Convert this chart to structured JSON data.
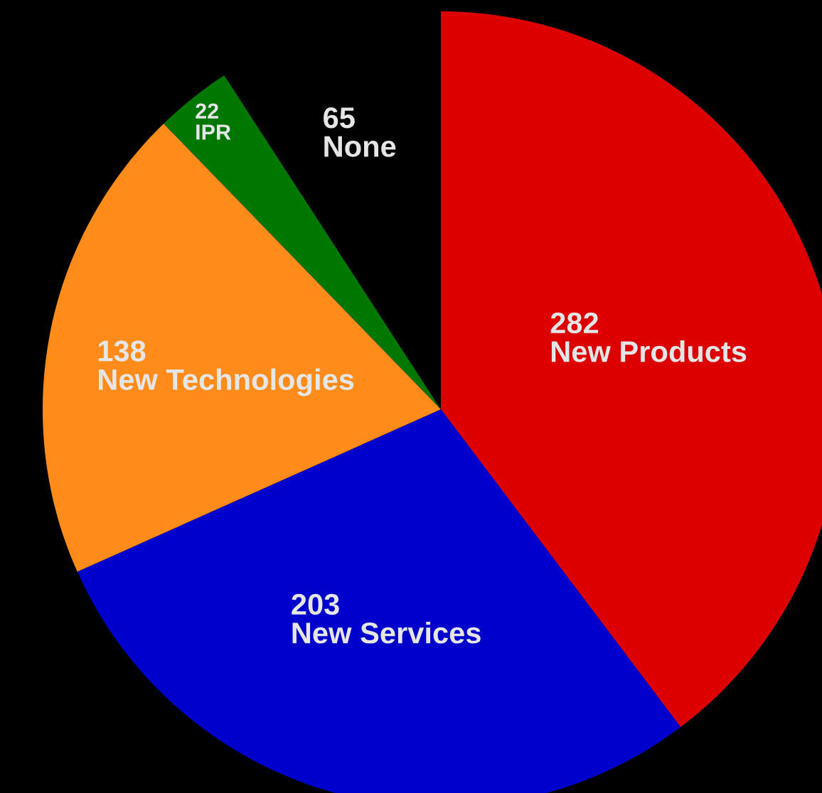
{
  "chart_data": {
    "type": "pie",
    "categories": [
      "New Products",
      "New Services",
      "New Technologies",
      "IPR",
      "None"
    ],
    "values": [
      282,
      203,
      138,
      22,
      65
    ],
    "colors": [
      "#dd0000",
      "#0000cc",
      "#ff8c1a",
      "#007700",
      "#000000"
    ],
    "data_labels": true,
    "legend": false
  }
}
